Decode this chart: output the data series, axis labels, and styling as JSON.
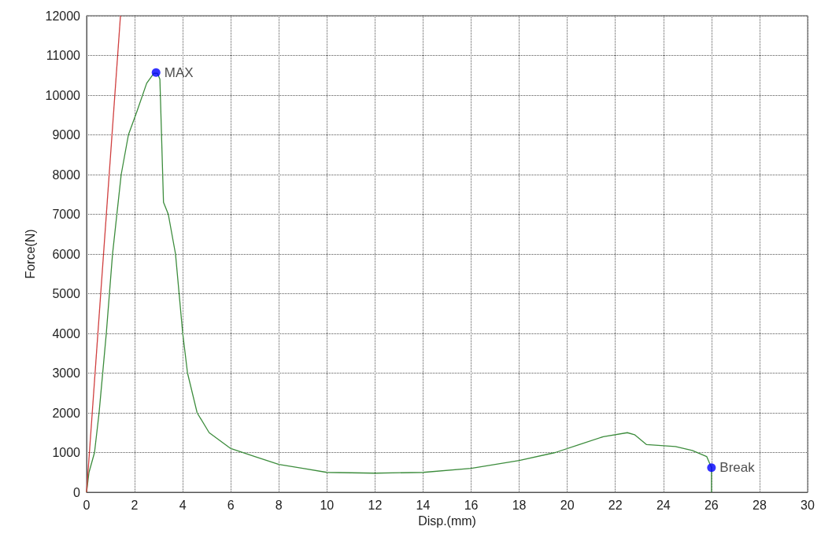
{
  "chart_data": {
    "type": "line",
    "xlabel": "Disp.(mm)",
    "ylabel": "Force(N)",
    "xlim": [
      0,
      30
    ],
    "xticks": [
      0,
      2,
      4,
      6,
      8,
      10,
      12,
      14,
      16,
      18,
      20,
      22,
      24,
      26,
      28,
      30
    ],
    "ylim": [
      0,
      12000
    ],
    "yticks": [
      0,
      1000,
      2000,
      3000,
      4000,
      5000,
      6000,
      7000,
      8000,
      9000,
      10000,
      11000,
      12000
    ],
    "grid": true,
    "series": [
      {
        "color": "#3c8c3c",
        "x": [
          0,
          0.1,
          0.33,
          0.52,
          0.82,
          1.08,
          1.44,
          1.74,
          2.1,
          2.5,
          2.8,
          2.95,
          3.05,
          3.2,
          3.4,
          3.7,
          3.85,
          4.0,
          4.2,
          4.6,
          5.1,
          6,
          7,
          8,
          9,
          10,
          12,
          14,
          16,
          18,
          19.5,
          20.5,
          21.5,
          22.5,
          22.8,
          23.3,
          24.5,
          25.2,
          25.8,
          26,
          26
        ],
        "values": [
          0,
          500,
          1000,
          2000,
          4000,
          6000,
          8000,
          9000,
          9600,
          10300,
          10550,
          10550,
          10400,
          7300,
          7000,
          6000,
          5000,
          4000,
          3000,
          2000,
          1500,
          1100,
          900,
          700,
          600,
          500,
          480,
          500,
          600,
          800,
          1000,
          1200,
          1400,
          1500,
          1450,
          1200,
          1150,
          1050,
          900,
          620,
          0
        ]
      },
      {
        "color": "#d04040",
        "x": [
          0,
          1.41
        ],
        "values": [
          0,
          12000
        ]
      },
      {
        "type": "scatter",
        "color": "#0000ff",
        "x": [
          2.89,
          26
        ],
        "values": [
          10570,
          620
        ]
      }
    ],
    "annotations": [
      {
        "text": "MAX",
        "x": 2.89,
        "y": 10570
      },
      {
        "text": "Break",
        "x": 26,
        "y": 620
      }
    ]
  }
}
